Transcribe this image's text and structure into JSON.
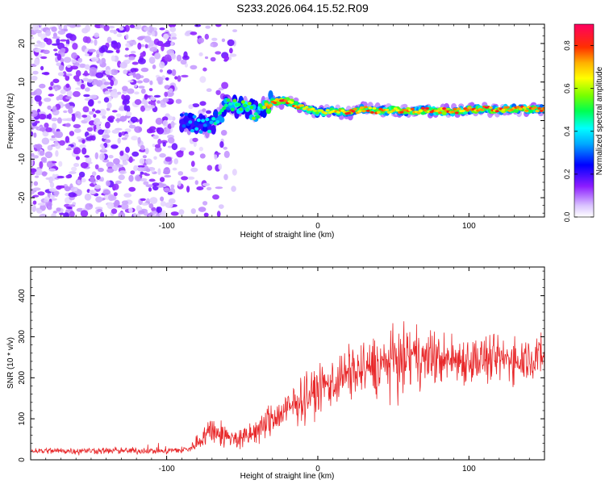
{
  "title": "S233.2026.064.15.52.R09",
  "chart_data": [
    {
      "type": "heatmap",
      "xlabel": "Height of straight line (km)",
      "ylabel": "Frequency (Hz)",
      "xlim": [
        -190,
        150
      ],
      "ylim": [
        -25,
        25
      ],
      "x_ticks": [
        -100,
        0,
        100
      ],
      "y_ticks": [
        -20,
        -10,
        0,
        10,
        20
      ],
      "colorbar": {
        "label": "Normalized spectral amplitude",
        "range": [
          0,
          0.9
        ],
        "ticks": [
          0.0,
          0.2,
          0.4,
          0.6,
          0.8
        ]
      },
      "ridge": {
        "x": [
          -90,
          -80,
          -70,
          -60,
          -50,
          -40,
          -30,
          -20,
          -10,
          0,
          10,
          20,
          30,
          40,
          50,
          60,
          70,
          80,
          90,
          100,
          110,
          120,
          130,
          140,
          150
        ],
        "freq": [
          0.0,
          -1.0,
          -1.5,
          4.0,
          3.5,
          2.0,
          5.0,
          5.0,
          3.5,
          2.0,
          2.5,
          2.0,
          3.0,
          2.5,
          2.8,
          2.5,
          2.6,
          2.6,
          2.5,
          2.8,
          3.0,
          2.8,
          3.0,
          3.0,
          3.0
        ],
        "peak_amplitude": [
          0.3,
          0.4,
          0.45,
          0.55,
          0.6,
          0.55,
          0.9,
          0.85,
          0.75,
          0.7,
          0.8,
          0.85,
          0.85,
          0.8,
          0.8,
          0.85,
          0.85,
          0.9,
          0.85,
          0.8,
          0.85,
          0.9,
          0.85,
          0.9,
          0.85
        ]
      }
    },
    {
      "type": "line",
      "xlabel": "Height of straight line (km)",
      "ylabel": "SNR (10 * v/v)",
      "xlim": [
        -190,
        150
      ],
      "ylim": [
        0,
        470
      ],
      "x_ticks": [
        -100,
        0,
        100
      ],
      "y_ticks": [
        0,
        100,
        200,
        300,
        400
      ],
      "series": [
        {
          "name": "SNR",
          "color": "#e8282a",
          "envelope_x": [
            -190,
            -160,
            -130,
            -100,
            -85,
            -75,
            -70,
            -60,
            -50,
            -40,
            -30,
            -20,
            -10,
            0,
            10,
            20,
            30,
            40,
            50,
            60,
            70,
            80,
            90,
            100,
            110,
            120,
            130,
            140,
            150
          ],
          "envelope_mean": [
            22,
            22,
            22,
            22,
            25,
            60,
            75,
            55,
            50,
            70,
            100,
            120,
            150,
            170,
            190,
            210,
            220,
            230,
            240,
            250,
            250,
            245,
            245,
            245,
            245,
            245,
            245,
            250,
            255
          ],
          "envelope_spread": [
            12,
            12,
            12,
            12,
            15,
            40,
            55,
            40,
            40,
            50,
            60,
            70,
            80,
            85,
            90,
            95,
            100,
            110,
            110,
            110,
            100,
            95,
            90,
            90,
            85,
            80,
            80,
            80,
            80
          ]
        }
      ]
    }
  ]
}
